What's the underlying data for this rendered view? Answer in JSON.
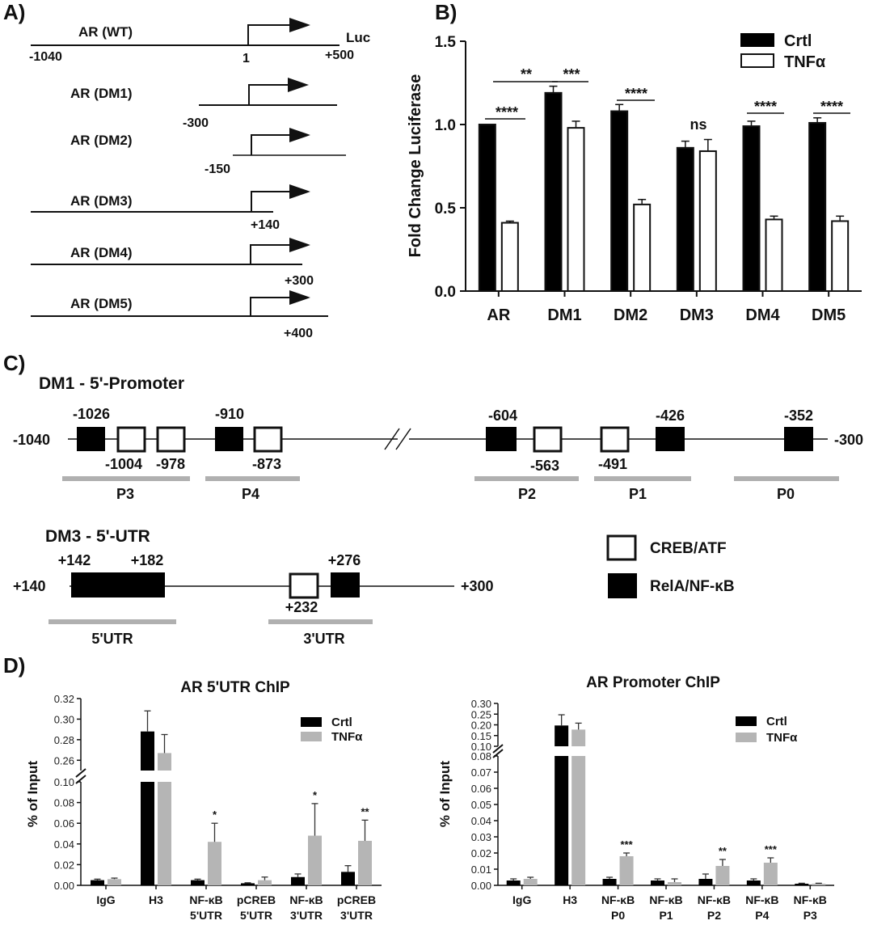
{
  "panel_labels": {
    "a": "A)",
    "b": "B)",
    "c": "C)",
    "d": "D)"
  },
  "panel_a": {
    "constructs": [
      {
        "name": "AR (WT)",
        "start": "-1040",
        "end": "+500",
        "end_tag": "Luc",
        "tss": "1"
      },
      {
        "name": "AR (DM1)",
        "start": "-300"
      },
      {
        "name": "AR (DM2)",
        "start": "-150"
      },
      {
        "name": "AR (DM3)",
        "end": "+140"
      },
      {
        "name": "AR (DM4)",
        "end": "+300"
      },
      {
        "name": "AR (DM5)",
        "end": "+400"
      }
    ]
  },
  "panel_c": {
    "dm1_title": "DM1 - 5'-Promoter",
    "dm1_left": "-1040",
    "dm1_right": "-300",
    "dm1_sites": [
      {
        "label": "-1026",
        "type": "RelA"
      },
      {
        "label": "-1004",
        "type": "CREB"
      },
      {
        "label": "-978",
        "type": "CREB"
      },
      {
        "label": "-910",
        "type": "RelA"
      },
      {
        "label": "-873",
        "type": "CREB"
      },
      {
        "label": "-604",
        "type": "RelA"
      },
      {
        "label": "-563",
        "type": "CREB"
      },
      {
        "label": "-491",
        "type": "CREB"
      },
      {
        "label": "-426",
        "type": "RelA"
      },
      {
        "label": "-352",
        "type": "RelA"
      }
    ],
    "dm1_regions": [
      "P3",
      "P4",
      "P2",
      "P1",
      "P0"
    ],
    "dm3_title": "DM3 - 5'-UTR",
    "dm3_left": "+140",
    "dm3_right": "+300",
    "dm3_sites": [
      {
        "label": "+142",
        "type": "RelA"
      },
      {
        "label": "+182",
        "type": "RelA"
      },
      {
        "label": "+232",
        "type": "CREB"
      },
      {
        "label": "+276",
        "type": "RelA"
      }
    ],
    "dm3_regions": [
      "5'UTR",
      "3'UTR"
    ],
    "legend": {
      "creb": "CREB/ATF",
      "rela": "RelA/NF-κB"
    }
  },
  "chart_data": [
    {
      "id": "B",
      "type": "bar",
      "title": "",
      "xlabel": "",
      "ylabel": "Fold Change Luciferase",
      "ylim": [
        0,
        1.5
      ],
      "yticks": [
        "0.0",
        "0.5",
        "1.0",
        "1.5"
      ],
      "categories": [
        "AR",
        "DM1",
        "DM2",
        "DM3",
        "DM4",
        "DM5"
      ],
      "series": [
        {
          "name": "Crtl",
          "values": [
            1.0,
            1.19,
            1.08,
            0.86,
            0.99,
            1.01
          ],
          "errors": [
            0.0,
            0.04,
            0.04,
            0.04,
            0.03,
            0.03
          ],
          "color": "#000000"
        },
        {
          "name": "TNFα",
          "values": [
            0.41,
            0.98,
            0.52,
            0.84,
            0.43,
            0.42
          ],
          "errors": [
            0.01,
            0.04,
            0.03,
            0.07,
            0.02,
            0.03
          ],
          "color": "#ffffff"
        }
      ],
      "annotations": [
        "****",
        "**",
        "***",
        "****",
        "ns",
        "****",
        "****"
      ],
      "legend_position": "top-right",
      "grid": false
    },
    {
      "id": "D-left",
      "type": "bar",
      "title": "AR 5'UTR ChIP",
      "ylabel": "% of  Input",
      "y_segments": [
        {
          "ylim": [
            0,
            0.1
          ],
          "ticks": [
            "0.00",
            "0.02",
            "0.04",
            "0.06",
            "0.08",
            "0.10"
          ]
        },
        {
          "ylim": [
            0.25,
            0.32
          ],
          "ticks": [
            "0.26",
            "0.28",
            "0.30",
            "0.32"
          ]
        }
      ],
      "categories": [
        "IgG",
        "H3",
        "NF-κB\n5'UTR",
        "pCREB\n5'UTR",
        "NF-κB\n3'UTR",
        "pCREB\n3'UTR"
      ],
      "series": [
        {
          "name": "Crtl",
          "values": [
            0.005,
            0.288,
            0.005,
            0.002,
            0.008,
            0.013
          ],
          "errors": [
            0.001,
            0.02,
            0.001,
            0.0005,
            0.003,
            0.006
          ],
          "color": "#000000"
        },
        {
          "name": "TNFα",
          "values": [
            0.006,
            0.267,
            0.042,
            0.005,
            0.048,
            0.043
          ],
          "errors": [
            0.001,
            0.018,
            0.018,
            0.003,
            0.031,
            0.02
          ],
          "color": "#b5b5b5"
        }
      ],
      "annotations": [
        "*",
        "*",
        "**"
      ],
      "legend_position": "top-right"
    },
    {
      "id": "D-right",
      "type": "bar",
      "title": "AR Promoter ChIP",
      "ylabel": "% of  Input",
      "y_segments": [
        {
          "ylim": [
            0,
            0.08
          ],
          "ticks": [
            "0.00",
            "0.01",
            "0.02",
            "0.03",
            "0.04",
            "0.05",
            "0.06",
            "0.07",
            "0.08"
          ]
        },
        {
          "ylim": [
            0.1,
            0.3
          ],
          "ticks": [
            "0.10",
            "0.15",
            "0.20",
            "0.25",
            "0.30"
          ]
        }
      ],
      "categories": [
        "IgG",
        "H3",
        "NF-κB\nP0",
        "NF-κB\nP1",
        "NF-κB\nP2",
        "NF-κB\nP4",
        "NF-κB\nP3"
      ],
      "series": [
        {
          "name": "Crtl",
          "values": [
            0.003,
            0.197,
            0.004,
            0.003,
            0.004,
            0.003,
            0.001
          ],
          "errors": [
            0.001,
            0.05,
            0.001,
            0.001,
            0.003,
            0.001,
            0.0003
          ],
          "color": "#000000"
        },
        {
          "name": "TNFα",
          "values": [
            0.004,
            0.178,
            0.018,
            0.002,
            0.012,
            0.014,
            0.001
          ],
          "errors": [
            0.001,
            0.03,
            0.002,
            0.002,
            0.004,
            0.003,
            0.0003
          ],
          "color": "#b5b5b5"
        }
      ],
      "annotations": [
        "***",
        "**",
        "***"
      ],
      "legend_position": "top-right"
    }
  ]
}
